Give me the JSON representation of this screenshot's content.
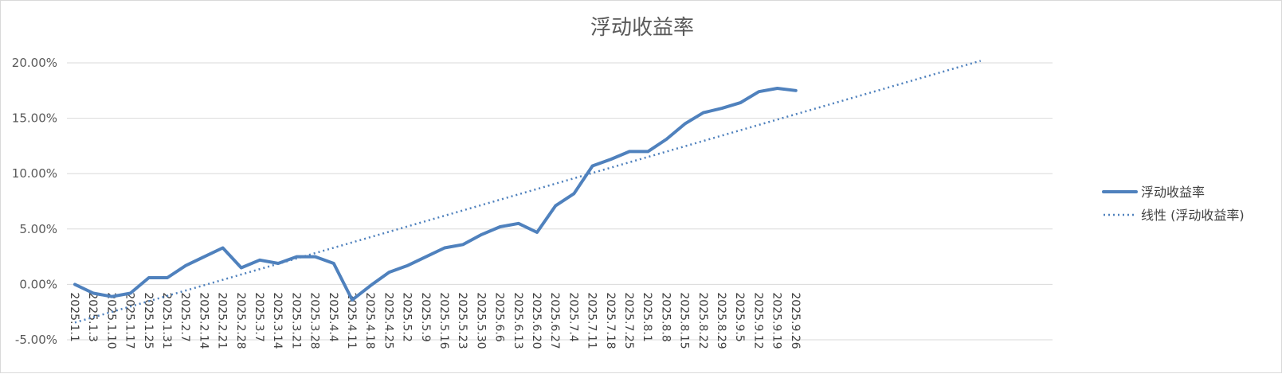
{
  "chart_data": {
    "type": "line",
    "title": "浮动收益率",
    "xlabel": "",
    "ylabel": "",
    "y_format": "percent_2dp",
    "ylim": [
      -0.05,
      0.2
    ],
    "yticks": [
      -0.05,
      0,
      0.05,
      0.1,
      0.15,
      0.2
    ],
    "ytick_labels": [
      "-5.00%",
      "0.00%",
      "5.00%",
      "10.00%",
      "15.00%",
      "20.00%"
    ],
    "categories": [
      "2025.1.1",
      "2025.1.3",
      "2025.1.10",
      "2025.1.17",
      "2025.1.25",
      "2025.1.31",
      "2025.2.7",
      "2025.2.14",
      "2025.2.21",
      "2025.2.28",
      "2025.3.7",
      "2025.3.14",
      "2025.3.21",
      "2025.3.28",
      "2025.4.4",
      "2025.4.11",
      "2025.4.18",
      "2025.4.25",
      "2025.5.2",
      "2025.5.9",
      "2025.5.16",
      "2025.5.23",
      "2025.5.30",
      "2025.6.6",
      "2025.6.13",
      "2025.6.20",
      "2025.6.27",
      "2025.7.4",
      "2025.7.11",
      "2025.7.18",
      "2025.7.25",
      "2025.8.1",
      "2025.8.8",
      "2025.8.15",
      "2025.8.22",
      "2025.8.29",
      "2025.9.5",
      "2025.9.12",
      "2025.9.19",
      "2025.9.26"
    ],
    "series": [
      {
        "name": "浮动收益率",
        "style": "solid",
        "color": "#4F81BD",
        "values": [
          0.0,
          -0.008,
          -0.011,
          -0.008,
          0.006,
          0.006,
          0.017,
          0.025,
          0.033,
          0.015,
          0.022,
          0.019,
          0.025,
          0.025,
          0.019,
          -0.014,
          -0.001,
          0.011,
          0.017,
          0.025,
          0.033,
          0.036,
          0.045,
          0.052,
          0.055,
          0.047,
          0.071,
          0.082,
          0.107,
          0.113,
          0.12,
          0.12,
          0.131,
          0.145,
          0.155,
          0.159,
          0.164,
          0.174,
          0.177,
          0.175
        ]
      },
      {
        "name": "线性 (浮动收益率)",
        "style": "dotted",
        "color": "#4F81BD",
        "trendline": "linear",
        "fit_of": "浮动收益率",
        "forward_periods": 10
      }
    ],
    "grid": true,
    "legend": "right"
  }
}
